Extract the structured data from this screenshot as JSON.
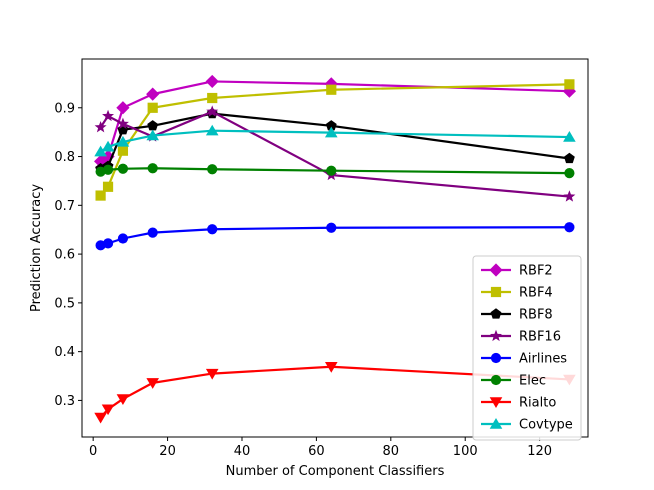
{
  "chart_data": {
    "type": "line",
    "title": "",
    "xlabel": "Number of Component Classifiers",
    "ylabel": "Prediction Accuracy",
    "xlim": [
      -3,
      133
    ],
    "ylim": [
      0.225,
      1.0
    ],
    "xticks": [
      0,
      20,
      40,
      60,
      80,
      100,
      120
    ],
    "yticks": [
      0.3,
      0.4,
      0.5,
      0.6,
      0.7,
      0.8,
      0.9
    ],
    "legend_position": "lower-right",
    "series": [
      {
        "name": "RBF2",
        "color": "#c000c0",
        "marker": "diamond",
        "x": [
          2,
          4,
          8,
          16,
          32,
          64,
          128
        ],
        "y": [
          0.79,
          0.8,
          0.9,
          0.928,
          0.954,
          0.949,
          0.934
        ]
      },
      {
        "name": "RBF4",
        "color": "#bfbf00",
        "marker": "square",
        "x": [
          2,
          4,
          8,
          16,
          32,
          64,
          128
        ],
        "y": [
          0.72,
          0.738,
          0.812,
          0.9,
          0.92,
          0.937,
          0.948
        ]
      },
      {
        "name": "RBF8",
        "color": "#000000",
        "marker": "pentagon",
        "x": [
          2,
          4,
          8,
          16,
          32,
          64,
          128
        ],
        "y": [
          0.775,
          0.78,
          0.855,
          0.863,
          0.888,
          0.863,
          0.796
        ]
      },
      {
        "name": "RBF16",
        "color": "#800080",
        "marker": "star",
        "x": [
          2,
          4,
          8,
          16,
          32,
          64,
          128
        ],
        "y": [
          0.86,
          0.883,
          0.867,
          0.841,
          0.892,
          0.762,
          0.718
        ]
      },
      {
        "name": "Airlines",
        "color": "#0000ff",
        "marker": "circle",
        "x": [
          2,
          4,
          8,
          16,
          32,
          64,
          128
        ],
        "y": [
          0.618,
          0.622,
          0.632,
          0.644,
          0.651,
          0.654,
          0.655
        ]
      },
      {
        "name": "Elec",
        "color": "#008000",
        "marker": "circle",
        "x": [
          2,
          4,
          8,
          16,
          32,
          64,
          128
        ],
        "y": [
          0.769,
          0.773,
          0.775,
          0.776,
          0.774,
          0.771,
          0.766
        ]
      },
      {
        "name": "Rialto",
        "color": "#ff0000",
        "marker": "triangle-down",
        "x": [
          2,
          4,
          8,
          16,
          32,
          64,
          128
        ],
        "y": [
          0.265,
          0.282,
          0.303,
          0.336,
          0.355,
          0.369,
          0.343
        ]
      },
      {
        "name": "Covtype",
        "color": "#00bfbf",
        "marker": "triangle-up",
        "x": [
          2,
          4,
          8,
          16,
          32,
          64,
          128
        ],
        "y": [
          0.81,
          0.82,
          0.83,
          0.843,
          0.853,
          0.849,
          0.84
        ]
      }
    ]
  }
}
